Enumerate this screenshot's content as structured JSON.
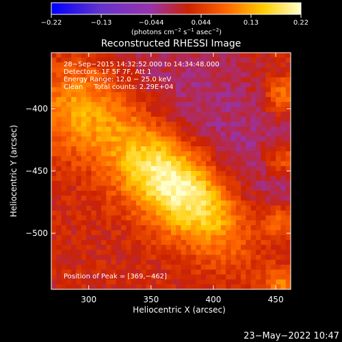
{
  "colorbar": {
    "ticks": [
      "−0.22",
      "−0.13",
      "−0.044",
      "0.044",
      "0.13",
      "0.22"
    ],
    "units_prefix": "(photons cm",
    "units_exp1": "−2",
    "units_mid": " s",
    "units_exp2": "−1",
    "units_mid2": " asec",
    "units_exp3": "−2",
    "units_suffix": ")",
    "stops": [
      "#0000ff",
      "#6633cc",
      "#9933aa",
      "#cc2200",
      "#ff6600",
      "#ffcc00",
      "#ffffcc"
    ]
  },
  "chart_data": {
    "type": "heatmap",
    "title": "Reconstructed RHESSI Image",
    "xlabel": "Heliocentric X (arcsec)",
    "ylabel": "Heliocentric Y (arcsec)",
    "xlim": [
      270,
      462
    ],
    "ylim": [
      -545,
      -355
    ],
    "x_ticks": [
      300,
      350,
      400,
      450
    ],
    "y_ticks": [
      -400,
      -450,
      -500
    ],
    "x_tick_labels": [
      "300",
      "350",
      "400",
      "450"
    ],
    "y_tick_labels": [
      "−400",
      "−450",
      "−500"
    ],
    "peak": {
      "x": 369,
      "y": -462,
      "value": 0.22
    },
    "value_range": [
      -0.22,
      0.22
    ]
  },
  "annotations": {
    "line1": "28−Sep−2015 14:32:52.000 to 14:34:48.000",
    "line2": "Detectors: 1F 5F 7F, Att 1",
    "line3": "Energy Range: 12.0 − 25.0 keV",
    "line4": "Clean     Total counts: 2.29E+04",
    "peak_label": "Position of Peak = [369,−462]"
  },
  "footer": {
    "date": "23−May−2022 10:47"
  }
}
